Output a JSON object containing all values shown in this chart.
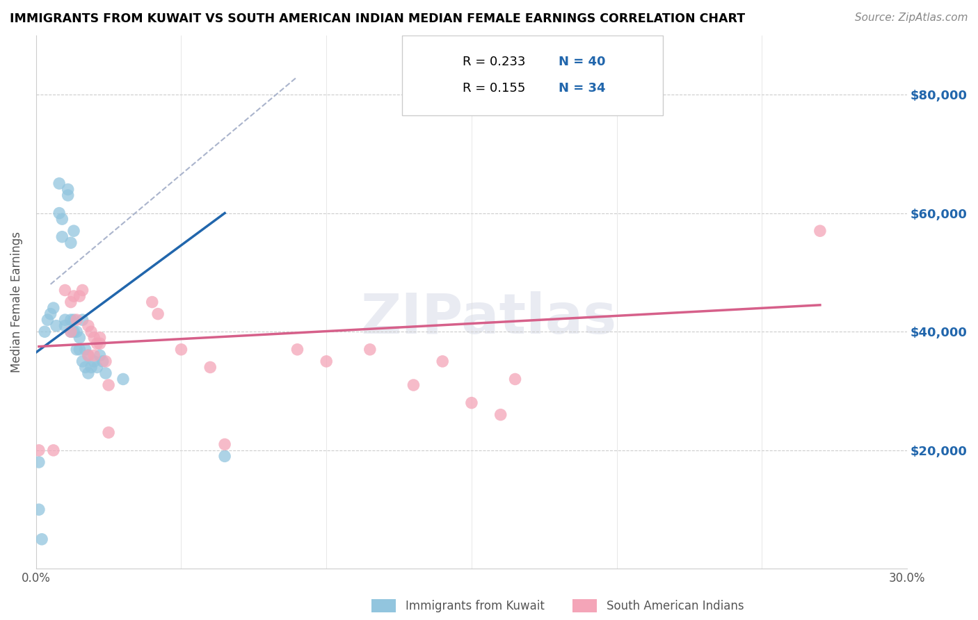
{
  "title": "IMMIGRANTS FROM KUWAIT VS SOUTH AMERICAN INDIAN MEDIAN FEMALE EARNINGS CORRELATION CHART",
  "source": "Source: ZipAtlas.com",
  "ylabel": "Median Female Earnings",
  "xlim": [
    0,
    0.3
  ],
  "ylim": [
    0,
    90000
  ],
  "yticks": [
    0,
    20000,
    40000,
    60000,
    80000
  ],
  "ytick_labels": [
    "",
    "$20,000",
    "$40,000",
    "$60,000",
    "$80,000"
  ],
  "xticks": [
    0.0,
    0.05,
    0.1,
    0.15,
    0.2,
    0.25,
    0.3
  ],
  "xtick_labels": [
    "0.0%",
    "",
    "",
    "",
    "",
    "",
    "30.0%"
  ],
  "blue_color": "#92c5de",
  "pink_color": "#f4a5b8",
  "blue_line_color": "#2166ac",
  "pink_line_color": "#d6608a",
  "watermark": "ZIPatlas",
  "blue_scatter_x": [
    0.001,
    0.002,
    0.003,
    0.004,
    0.005,
    0.006,
    0.007,
    0.008,
    0.008,
    0.009,
    0.009,
    0.01,
    0.01,
    0.011,
    0.011,
    0.012,
    0.012,
    0.012,
    0.013,
    0.013,
    0.013,
    0.014,
    0.014,
    0.015,
    0.015,
    0.016,
    0.016,
    0.017,
    0.017,
    0.018,
    0.018,
    0.019,
    0.02,
    0.021,
    0.022,
    0.023,
    0.024,
    0.03,
    0.065,
    0.001
  ],
  "blue_scatter_y": [
    10000,
    5000,
    40000,
    42000,
    43000,
    44000,
    41000,
    60000,
    65000,
    56000,
    59000,
    42000,
    41000,
    63000,
    64000,
    40000,
    42000,
    55000,
    40000,
    42000,
    57000,
    40000,
    37000,
    39000,
    37000,
    42000,
    35000,
    37000,
    34000,
    36000,
    33000,
    34000,
    35000,
    34000,
    36000,
    35000,
    33000,
    32000,
    19000,
    18000
  ],
  "pink_scatter_x": [
    0.001,
    0.006,
    0.01,
    0.012,
    0.013,
    0.015,
    0.016,
    0.018,
    0.019,
    0.02,
    0.021,
    0.022,
    0.022,
    0.024,
    0.025,
    0.04,
    0.042,
    0.05,
    0.06,
    0.065,
    0.09,
    0.1,
    0.115,
    0.13,
    0.14,
    0.15,
    0.16,
    0.165,
    0.012,
    0.014,
    0.018,
    0.02,
    0.025,
    0.27
  ],
  "pink_scatter_y": [
    20000,
    20000,
    47000,
    45000,
    46000,
    46000,
    47000,
    41000,
    40000,
    39000,
    38000,
    39000,
    38000,
    35000,
    31000,
    45000,
    43000,
    37000,
    34000,
    21000,
    37000,
    35000,
    37000,
    31000,
    35000,
    28000,
    26000,
    32000,
    40000,
    42000,
    36000,
    36000,
    23000,
    57000
  ],
  "blue_line_x": [
    0.0,
    0.065
  ],
  "blue_line_y": [
    36500,
    60000
  ],
  "pink_line_x": [
    0.001,
    0.27
  ],
  "pink_line_y": [
    37500,
    44500
  ],
  "diag_line_x": [
    0.005,
    0.09
  ],
  "diag_line_y": [
    48000,
    83000
  ]
}
